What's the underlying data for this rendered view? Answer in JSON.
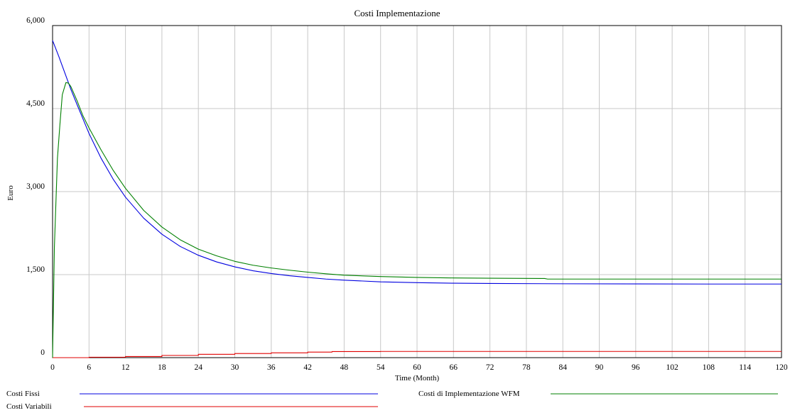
{
  "chart_data": {
    "type": "line",
    "title": "Costi Implementazione",
    "xlabel": "Time (Month)",
    "ylabel": "Euro",
    "xlim": [
      0,
      120
    ],
    "ylim": [
      0,
      6000
    ],
    "x_ticks": [
      "0",
      "6",
      "12",
      "18",
      "24",
      "30",
      "36",
      "42",
      "48",
      "54",
      "60",
      "66",
      "72",
      "78",
      "84",
      "90",
      "96",
      "102",
      "108",
      "114",
      "120"
    ],
    "y_ticks": [
      "0",
      "1,500",
      "3,000",
      "4,500",
      "6,000"
    ],
    "grid": true,
    "legend_position": "bottom",
    "series": [
      {
        "name": "Costi Fissi",
        "color": "#0000e0",
        "points": [
          [
            0,
            5730
          ],
          [
            1,
            5450
          ],
          [
            2,
            5150
          ],
          [
            3,
            4850
          ],
          [
            4,
            4580
          ],
          [
            6,
            4050
          ],
          [
            8,
            3600
          ],
          [
            10,
            3220
          ],
          [
            12,
            2900
          ],
          [
            15,
            2520
          ],
          [
            18,
            2230
          ],
          [
            21,
            2010
          ],
          [
            24,
            1850
          ],
          [
            27,
            1730
          ],
          [
            30,
            1640
          ],
          [
            33,
            1570
          ],
          [
            36,
            1520
          ],
          [
            39,
            1480
          ],
          [
            42,
            1450
          ],
          [
            45,
            1420
          ],
          [
            48,
            1400
          ],
          [
            54,
            1370
          ],
          [
            60,
            1355
          ],
          [
            66,
            1345
          ],
          [
            72,
            1340
          ],
          [
            84,
            1335
          ],
          [
            96,
            1332
          ],
          [
            108,
            1330
          ],
          [
            120,
            1330
          ]
        ]
      },
      {
        "name": "Costi di Implementazione WFM",
        "color": "#008000",
        "points": [
          [
            0,
            0
          ],
          [
            0.3,
            2000
          ],
          [
            0.8,
            3600
          ],
          [
            1.2,
            4200
          ],
          [
            1.6,
            4750
          ],
          [
            2.2,
            4970
          ],
          [
            2.6,
            4960
          ],
          [
            3,
            4900
          ],
          [
            4,
            4650
          ],
          [
            5,
            4370
          ],
          [
            6,
            4150
          ],
          [
            8,
            3750
          ],
          [
            10,
            3380
          ],
          [
            12,
            3060
          ],
          [
            15,
            2660
          ],
          [
            18,
            2360
          ],
          [
            21,
            2130
          ],
          [
            24,
            1960
          ],
          [
            27,
            1840
          ],
          [
            30,
            1740
          ],
          [
            33,
            1670
          ],
          [
            36,
            1620
          ],
          [
            39,
            1580
          ],
          [
            42,
            1545
          ],
          [
            45,
            1515
          ],
          [
            48,
            1490
          ],
          [
            54,
            1465
          ],
          [
            60,
            1450
          ],
          [
            66,
            1440
          ],
          [
            72,
            1435
          ],
          [
            81,
            1430
          ],
          [
            81.5,
            1420
          ],
          [
            96,
            1420
          ],
          [
            108,
            1420
          ],
          [
            120,
            1420
          ]
        ]
      },
      {
        "name": "Costi Variabili",
        "color": "#e00000",
        "points": [
          [
            0,
            0
          ],
          [
            6,
            0
          ],
          [
            6,
            8
          ],
          [
            12,
            8
          ],
          [
            12,
            20
          ],
          [
            18,
            20
          ],
          [
            18,
            40
          ],
          [
            24,
            40
          ],
          [
            24,
            60
          ],
          [
            30,
            60
          ],
          [
            30,
            75
          ],
          [
            36,
            75
          ],
          [
            36,
            88
          ],
          [
            42,
            88
          ],
          [
            42,
            100
          ],
          [
            46,
            100
          ],
          [
            46,
            110
          ],
          [
            54,
            110
          ],
          [
            54,
            112
          ],
          [
            120,
            112
          ]
        ]
      }
    ]
  }
}
